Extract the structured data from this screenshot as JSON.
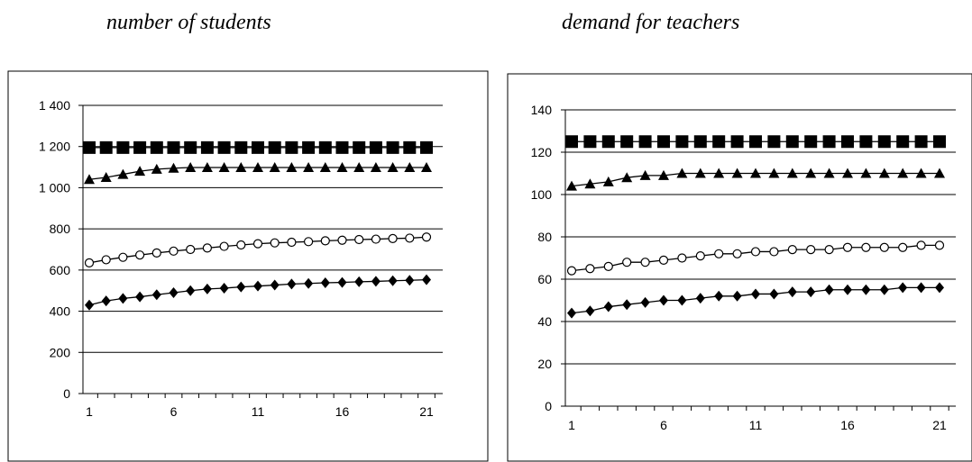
{
  "chart_data": [
    {
      "type": "line",
      "title": "number of students",
      "x": [
        1,
        2,
        3,
        4,
        5,
        6,
        7,
        8,
        9,
        10,
        11,
        12,
        13,
        14,
        15,
        16,
        17,
        18,
        19,
        20,
        21
      ],
      "xticks": [
        1,
        6,
        11,
        16,
        21
      ],
      "xtick_labels": [
        "1",
        "6",
        "11",
        "16",
        "21"
      ],
      "ylim": [
        0,
        1400
      ],
      "yticks": [
        0,
        200,
        400,
        600,
        800,
        1000,
        1200,
        1400
      ],
      "ytick_labels": [
        "0",
        "200",
        "400",
        "600",
        "800",
        "1 000",
        "1 200",
        "1 400"
      ],
      "grid": "horizontal",
      "series": [
        {
          "marker": "square",
          "values": [
            1195,
            1195,
            1195,
            1195,
            1195,
            1195,
            1195,
            1195,
            1195,
            1195,
            1195,
            1195,
            1195,
            1195,
            1195,
            1195,
            1195,
            1195,
            1195,
            1195,
            1195
          ]
        },
        {
          "marker": "triangle",
          "values": [
            1040,
            1050,
            1065,
            1080,
            1090,
            1095,
            1098,
            1098,
            1098,
            1098,
            1098,
            1098,
            1098,
            1098,
            1098,
            1098,
            1098,
            1098,
            1098,
            1098,
            1098
          ]
        },
        {
          "marker": "open-circle",
          "values": [
            635,
            650,
            662,
            673,
            683,
            692,
            700,
            707,
            715,
            722,
            728,
            732,
            735,
            738,
            742,
            745,
            748,
            750,
            753,
            755,
            760
          ]
        },
        {
          "marker": "diamond",
          "values": [
            430,
            450,
            462,
            470,
            480,
            490,
            500,
            508,
            512,
            518,
            522,
            527,
            532,
            535,
            538,
            540,
            543,
            545,
            548,
            550,
            553
          ]
        }
      ]
    },
    {
      "type": "line",
      "title": "demand for teachers",
      "x": [
        1,
        2,
        3,
        4,
        5,
        6,
        7,
        8,
        9,
        10,
        11,
        12,
        13,
        14,
        15,
        16,
        17,
        18,
        19,
        20,
        21
      ],
      "xticks": [
        1,
        6,
        11,
        16,
        21
      ],
      "xtick_labels": [
        "1",
        "6",
        "11",
        "16",
        "21"
      ],
      "ylim": [
        0,
        140
      ],
      "yticks": [
        0,
        20,
        40,
        60,
        80,
        100,
        120,
        140
      ],
      "ytick_labels": [
        "0",
        "20",
        "40",
        "60",
        "80",
        "100",
        "120",
        "140"
      ],
      "grid": "horizontal",
      "series": [
        {
          "marker": "square",
          "values": [
            125,
            125,
            125,
            125,
            125,
            125,
            125,
            125,
            125,
            125,
            125,
            125,
            125,
            125,
            125,
            125,
            125,
            125,
            125,
            125,
            125
          ]
        },
        {
          "marker": "triangle",
          "values": [
            104,
            105,
            106,
            108,
            109,
            109,
            110,
            110,
            110,
            110,
            110,
            110,
            110,
            110,
            110,
            110,
            110,
            110,
            110,
            110,
            110
          ]
        },
        {
          "marker": "open-circle",
          "values": [
            64,
            65,
            66,
            68,
            68,
            69,
            70,
            71,
            72,
            72,
            73,
            73,
            74,
            74,
            74,
            75,
            75,
            75,
            75,
            76,
            76
          ]
        },
        {
          "marker": "diamond",
          "values": [
            44,
            45,
            47,
            48,
            49,
            50,
            50,
            51,
            52,
            52,
            53,
            53,
            54,
            54,
            55,
            55,
            55,
            55,
            56,
            56,
            56
          ]
        }
      ]
    }
  ],
  "colors": {
    "line": "#000000",
    "marker_fill": "#000000",
    "open_marker_fill": "#ffffff",
    "background": "#ffffff"
  }
}
